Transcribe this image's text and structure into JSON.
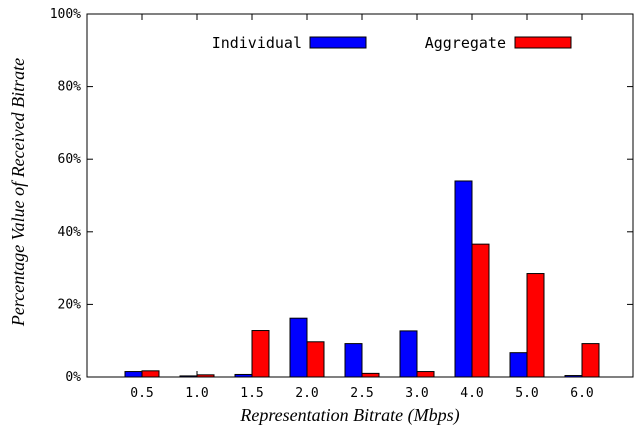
{
  "chart_data": {
    "type": "bar",
    "title": "",
    "xlabel": "Representation Bitrate (Mbps)",
    "ylabel": "Percentage Value of Received Bitrate",
    "categories": [
      "0.5",
      "1.0",
      "1.5",
      "2.0",
      "2.5",
      "3.0",
      "4.0",
      "5.0",
      "6.0"
    ],
    "series": [
      {
        "name": "Individual",
        "color": "#0000ff",
        "values": [
          1.5,
          0.3,
          0.7,
          16.2,
          9.2,
          12.7,
          54.0,
          6.7,
          0.4
        ]
      },
      {
        "name": "Aggregate",
        "color": "#ff0000",
        "values": [
          1.7,
          0.6,
          12.8,
          9.7,
          1.0,
          1.5,
          36.6,
          28.5,
          9.2
        ]
      }
    ],
    "ylim": [
      0,
      100
    ],
    "yticks": [
      0,
      20,
      40,
      60,
      80,
      100
    ],
    "ytick_labels": [
      "0%",
      "20%",
      "40%",
      "60%",
      "80%",
      "100%"
    ],
    "grid": false,
    "legend_position": "top"
  }
}
